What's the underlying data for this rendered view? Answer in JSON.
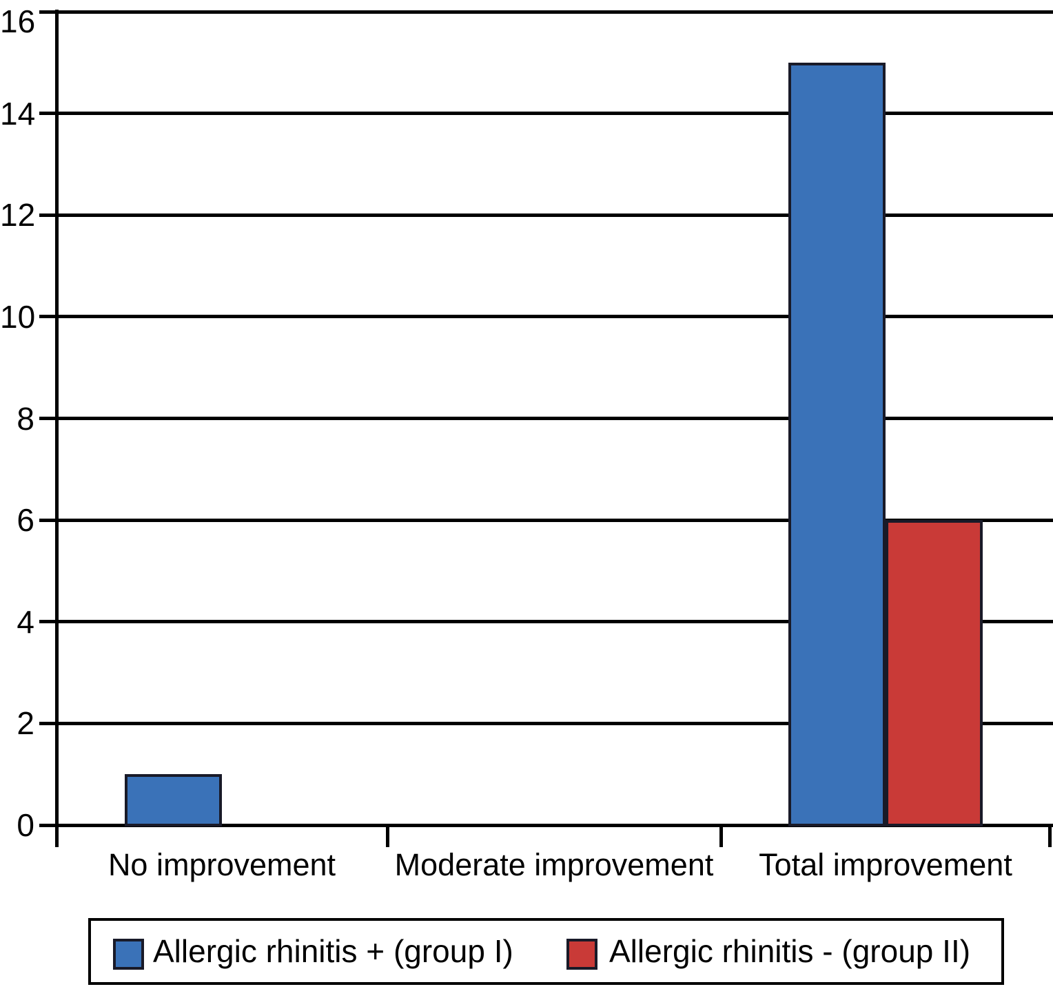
{
  "chart_data": {
    "type": "bar",
    "categories": [
      "No improvement",
      "Moderate improvement",
      "Total improvement"
    ],
    "series": [
      {
        "name": "Allergic rhinitis + (group I)",
        "color": "#3a72b8",
        "values": [
          1,
          0,
          15
        ]
      },
      {
        "name": "Allergic rhinitis - (group II)",
        "color": "#c93a37",
        "values": [
          0,
          0,
          6
        ]
      }
    ],
    "title": "",
    "ylim": [
      0,
      16
    ],
    "yticks": [
      0,
      2,
      4,
      6,
      8,
      10,
      12,
      14,
      16
    ],
    "grid": true,
    "legend_position": "bottom",
    "colors": {
      "axis": "#000000",
      "gridline": "#000000",
      "bar_outline": "#191a28",
      "background": "#ffffff"
    }
  }
}
